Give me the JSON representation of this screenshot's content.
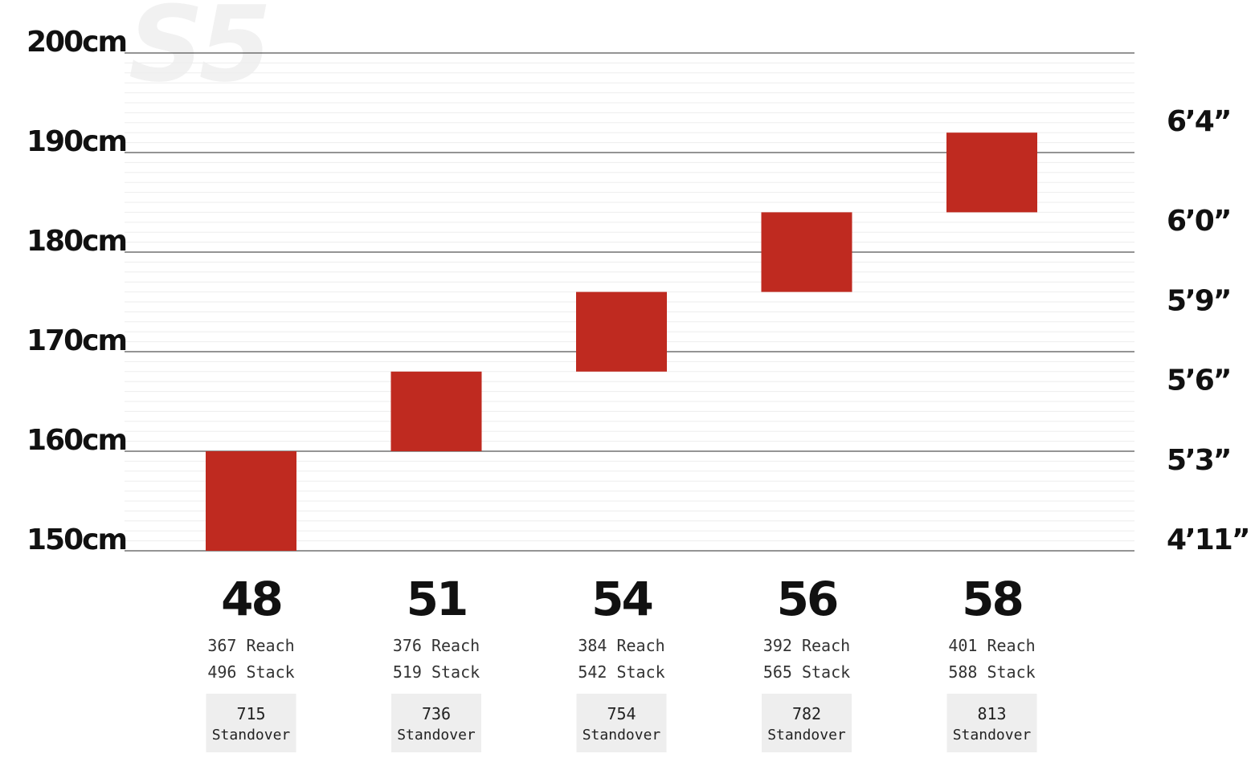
{
  "chart_data": {
    "type": "bar",
    "subtype": "floating-range",
    "y_unit": "cm",
    "ylim": [
      150,
      200
    ],
    "y_ticks": [
      "200cm",
      "190cm",
      "180cm",
      "170cm",
      "160cm",
      "150cm"
    ],
    "y_tick_values": [
      200,
      190,
      180,
      170,
      160,
      150
    ],
    "right_axis_labels": [
      "6’4”",
      "6’0”",
      "5’9”",
      "5’6”",
      "5’3”",
      "4’11”"
    ],
    "right_axis_values": [
      192,
      182,
      174,
      166,
      158,
      150
    ],
    "grid": true,
    "categories": [
      "48",
      "51",
      "54",
      "56",
      "58"
    ],
    "ranges": [
      {
        "low": 150,
        "high": 160
      },
      {
        "low": 160,
        "high": 168
      },
      {
        "low": 168,
        "high": 176
      },
      {
        "low": 176,
        "high": 184
      },
      {
        "low": 184,
        "high": 192
      }
    ],
    "specs": [
      {
        "reach": "367",
        "stack": "496",
        "standover": "715"
      },
      {
        "reach": "376",
        "stack": "519",
        "standover": "736"
      },
      {
        "reach": "384",
        "stack": "542",
        "standover": "754"
      },
      {
        "reach": "392",
        "stack": "565",
        "standover": "782"
      },
      {
        "reach": "401",
        "stack": "588",
        "standover": "813"
      }
    ],
    "reach_label": "Reach",
    "stack_label": "Stack",
    "standover_label": "Standover",
    "bar_color": "#bf2a20",
    "watermark_text": "S5"
  }
}
